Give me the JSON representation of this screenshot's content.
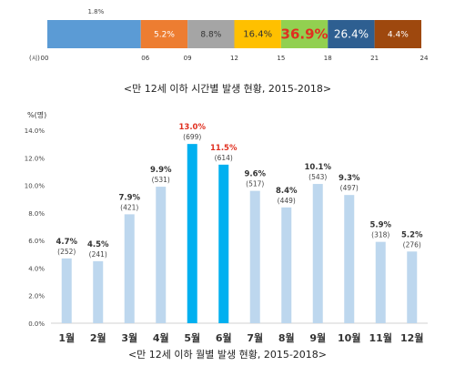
{
  "chart_data": [
    {
      "type": "bar",
      "orientation": "horizontal-stacked",
      "caption": "<만 12세 이하 시간별 발생 현황, 2015-2018>",
      "xlabel": "(시)",
      "ticks": [
        "00",
        "06",
        "09",
        "12",
        "15",
        "18",
        "21",
        "24"
      ],
      "tick_hours": [
        0,
        6,
        9,
        12,
        15,
        18,
        21,
        24
      ],
      "xlim": [
        0,
        24
      ],
      "segments": [
        {
          "from": 0,
          "to": 6,
          "label": "1.8%",
          "value": 1.8,
          "color": "#5b9bd5",
          "label_color": "#444444"
        },
        {
          "from": 6,
          "to": 9,
          "label": "5.2%",
          "value": 5.2,
          "color": "#ed7d31",
          "label_color": "#ffffff"
        },
        {
          "from": 9,
          "to": 12,
          "label": "8.8%",
          "value": 8.8,
          "color": "#a5a5a5",
          "label_color": "#333333"
        },
        {
          "from": 12,
          "to": 15,
          "label": "16.4%",
          "value": 16.4,
          "color": "#ffc000",
          "label_color": "#333333"
        },
        {
          "from": 15,
          "to": 18,
          "label": "36.9%",
          "value": 36.9,
          "color": "#92d050",
          "label_color": "#e03020"
        },
        {
          "from": 18,
          "to": 21,
          "label": "26.4%",
          "value": 26.4,
          "color": "#2e5f91",
          "label_color": "#ffffff"
        },
        {
          "from": 21,
          "to": 24,
          "label": "4.4%",
          "value": 4.4,
          "color": "#9e480e",
          "label_color": "#ffffff"
        }
      ]
    },
    {
      "type": "bar",
      "caption": "<만 12세 이하 월별 발생 현황, 2015-2018>",
      "ylabel": "%(명)",
      "ylim": [
        0,
        14
      ],
      "yticks": [
        "0.0%",
        "2.0%",
        "4.0%",
        "6.0%",
        "8.0%",
        "10.0%",
        "12.0%",
        "14.0%"
      ],
      "categories": [
        "1월",
        "2월",
        "3월",
        "4월",
        "5월",
        "6월",
        "7월",
        "8월",
        "9월",
        "10월",
        "11월",
        "12월"
      ],
      "values": [
        4.7,
        4.5,
        7.9,
        9.9,
        13.0,
        11.5,
        9.6,
        8.4,
        10.1,
        9.3,
        5.9,
        5.2
      ],
      "value_labels": [
        "4.7%",
        "4.5%",
        "7.9%",
        "9.9%",
        "13.0%",
        "11.5%",
        "9.6%",
        "8.4%",
        "10.1%",
        "9.3%",
        "5.9%",
        "5.2%"
      ],
      "counts": [
        "(252)",
        "(241)",
        "(421)",
        "(531)",
        "(699)",
        "(614)",
        "(517)",
        "(449)",
        "(543)",
        "(497)",
        "(318)",
        "(276)"
      ],
      "highlight": [
        false,
        false,
        false,
        false,
        true,
        true,
        false,
        false,
        false,
        false,
        false,
        false
      ],
      "colors": {
        "normal": "#bdd7ee",
        "highlight": "#00b0f0",
        "highlight_label": "#e03020",
        "label": "#333333",
        "axis": "#d0d0d0"
      }
    }
  ]
}
